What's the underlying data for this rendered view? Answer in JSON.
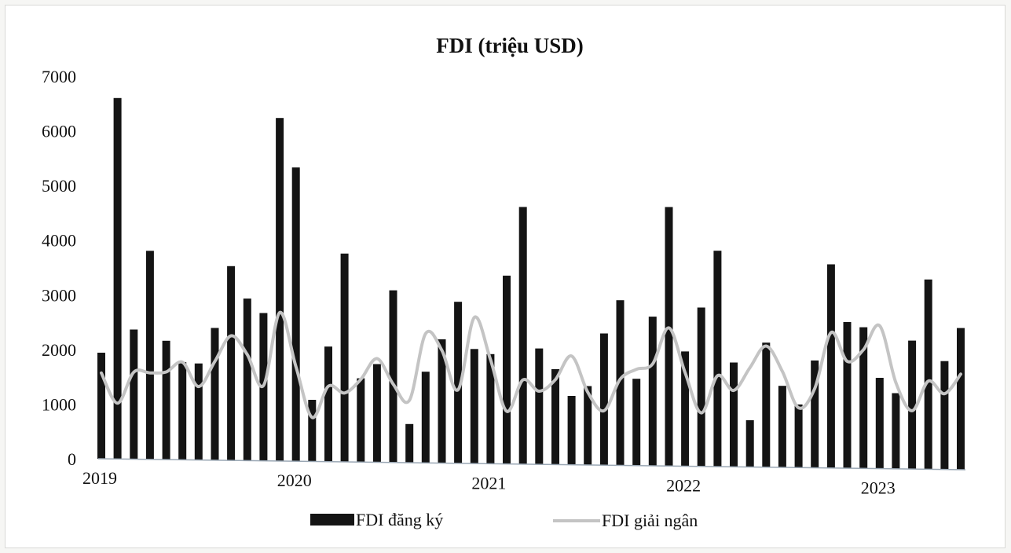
{
  "chart_data": {
    "type": "bar",
    "title": "FDI (triệu USD)",
    "xlabel": "",
    "ylabel": "",
    "ylim": [
      0,
      7000
    ],
    "y_ticks": [
      "0",
      "1000",
      "2000",
      "3000",
      "4000",
      "5000",
      "6000",
      "7000"
    ],
    "x_tick_labels": [
      {
        "label": "2019",
        "index": 0
      },
      {
        "label": "2020",
        "index": 12
      },
      {
        "label": "2021",
        "index": 24
      },
      {
        "label": "2022",
        "index": 36
      },
      {
        "label": "2023",
        "index": 48
      }
    ],
    "grid": false,
    "legend_position": "bottom",
    "months": 54,
    "series": [
      {
        "name": "FDI đăng ký",
        "mark": "bar",
        "color": "#141414",
        "values": [
          1940,
          6600,
          2370,
          3810,
          2170,
          1780,
          1760,
          2410,
          3540,
          2950,
          2690,
          6240,
          5340,
          1120,
          2090,
          3780,
          1520,
          1780,
          3120,
          700,
          1650,
          2240,
          2920,
          2070,
          1980,
          3400,
          4640,
          2090,
          1720,
          1240,
          1420,
          2370,
          2970,
          1560,
          2680,
          4650,
          2060,
          2850,
          3870,
          1870,
          840,
          2230,
          1460,
          1130,
          1920,
          3640,
          2610,
          2520,
          1620,
          1350,
          2290,
          3380,
          1930,
          2520
        ]
      },
      {
        "name": "FDI giải ngân",
        "mark": "line",
        "color": "#c4c4c4",
        "values": [
          1570,
          1020,
          1590,
          1580,
          1600,
          1780,
          1340,
          1800,
          2270,
          1930,
          1370,
          2700,
          1720,
          800,
          1370,
          1250,
          1500,
          1880,
          1420,
          1130,
          2340,
          2040,
          1330,
          2640,
          1880,
          950,
          1520,
          1320,
          1530,
          1960,
          1310,
          980,
          1550,
          1730,
          1830,
          2480,
          1680,
          960,
          1630,
          1370,
          1780,
          2170,
          1720,
          1070,
          1420,
          2420,
          1910,
          2120,
          2550,
          1540,
          1040,
          1570,
          1350,
          1700
        ]
      }
    ]
  }
}
